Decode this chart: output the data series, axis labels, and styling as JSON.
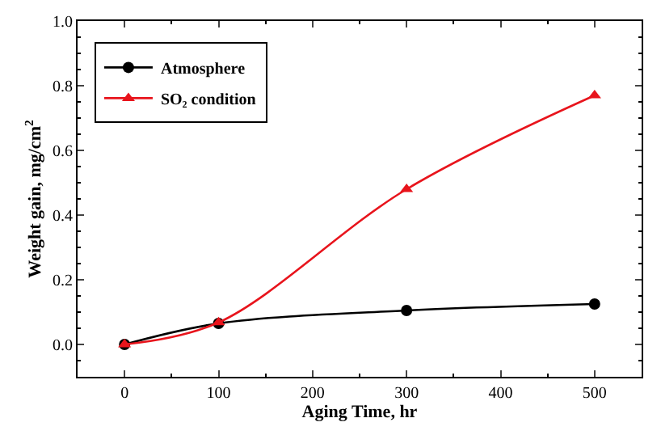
{
  "chart_data": {
    "type": "line",
    "xlabel": "Aging Time, hr",
    "ylabel": "Weight gain, mg/cm$^{2}$",
    "x": [
      0,
      100,
      300,
      500
    ],
    "series": [
      {
        "name": "Atmosphere",
        "color": "#000000",
        "values": [
          0,
          0.065,
          0.105,
          0.125
        ],
        "marker": "circle"
      },
      {
        "name": "SO₂ condition",
        "color": "#e8141c",
        "values": [
          0,
          0.068,
          0.48,
          0.77
        ],
        "marker": "triangle"
      }
    ],
    "xlim": [
      -50,
      550
    ],
    "xticks": [
      0,
      100,
      200,
      300,
      400,
      500
    ],
    "ylim": [
      -0.1,
      1.0
    ],
    "yticks": [
      {
        "value": 0,
        "label": "0.0"
      },
      0.2,
      0.4,
      0.6,
      0.8,
      {
        "value": 1,
        "label": "1.0"
      }
    ],
    "legend": "top left",
    "line_style": "solid"
  }
}
